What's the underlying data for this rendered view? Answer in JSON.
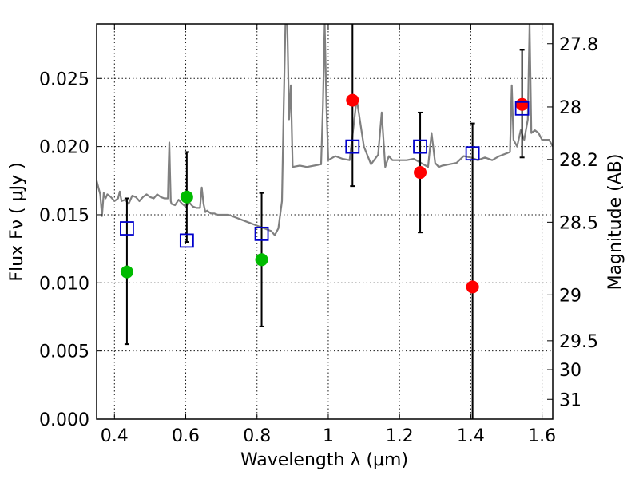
{
  "chart_data": {
    "type": "scatter",
    "xlabel": "Wavelength  λ (μm)",
    "ylabel": "Flux  Fν  ( μJy )",
    "ylabel_right": "Magnitude (AB)",
    "xlim": [
      0.35,
      1.63
    ],
    "ylim": [
      0.0,
      0.029
    ],
    "grid": true,
    "x_ticks": [
      0.4,
      0.6,
      0.8,
      1.0,
      1.2,
      1.4,
      1.6
    ],
    "x_tick_labels": [
      "0.4",
      "0.6",
      "0.8",
      "1",
      "1.2",
      "1.4",
      "1.6"
    ],
    "y_ticks": [
      0.0,
      0.005,
      0.01,
      0.015,
      0.02,
      0.025
    ],
    "y_tick_labels": [
      "0.000",
      "0.005",
      "0.010",
      "0.015",
      "0.020",
      "0.025"
    ],
    "right_ticks": [
      {
        "flux": 0.02755,
        "label": "27.8"
      },
      {
        "flux": 0.02291,
        "label": "28"
      },
      {
        "flux": 0.01905,
        "label": "28.2"
      },
      {
        "flux": 0.01445,
        "label": "28.5"
      },
      {
        "flux": 0.00912,
        "label": "29"
      },
      {
        "flux": 0.00575,
        "label": "29.5"
      },
      {
        "flux": 0.00363,
        "label": "30"
      },
      {
        "flux": 0.00145,
        "label": "31"
      }
    ],
    "series": [
      {
        "color": "#00bb00",
        "marker": "circle",
        "x": [
          0.435,
          0.603,
          0.813
        ],
        "y": [
          0.0108,
          0.0163,
          0.0117
        ]
      },
      {
        "color": "#ff0000",
        "marker": "circle",
        "x": [
          1.068,
          1.258,
          1.405,
          1.544
        ],
        "y": [
          0.0234,
          0.0181,
          0.0097,
          0.0231
        ]
      },
      {
        "color": "#0000cc",
        "marker": "open-square",
        "x": [
          0.435,
          0.603,
          0.813,
          1.068,
          1.258,
          1.405,
          1.544
        ],
        "y": [
          0.014,
          0.0131,
          0.0136,
          0.02,
          0.02,
          0.0195,
          0.0228
        ]
      }
    ],
    "error_bars": [
      {
        "x": 0.435,
        "low": 0.0055,
        "high": 0.0162
      },
      {
        "x": 0.603,
        "low": 0.013,
        "high": 0.0196
      },
      {
        "x": 0.813,
        "low": 0.0068,
        "high": 0.0166
      },
      {
        "x": 1.068,
        "low": 0.0171,
        "high": 0.029
      },
      {
        "x": 1.258,
        "low": 0.0137,
        "high": 0.0225
      },
      {
        "x": 1.405,
        "low": 0.0,
        "high": 0.0217
      },
      {
        "x": 1.544,
        "low": 0.0192,
        "high": 0.0271
      }
    ],
    "model_spectrum": {
      "color": "#808080",
      "x": [
        0.35,
        0.355,
        0.36,
        0.365,
        0.37,
        0.375,
        0.38,
        0.39,
        0.4,
        0.41,
        0.415,
        0.42,
        0.43,
        0.44,
        0.45,
        0.46,
        0.47,
        0.48,
        0.49,
        0.5,
        0.51,
        0.52,
        0.53,
        0.54,
        0.55,
        0.552,
        0.554,
        0.556,
        0.558,
        0.56,
        0.57,
        0.58,
        0.59,
        0.6,
        0.61,
        0.62,
        0.63,
        0.64,
        0.645,
        0.65,
        0.655,
        0.66,
        0.67,
        0.68,
        0.69,
        0.7,
        0.72,
        0.74,
        0.76,
        0.78,
        0.8,
        0.82,
        0.84,
        0.85,
        0.86,
        0.87,
        0.875,
        0.88,
        0.885,
        0.888,
        0.89,
        0.895,
        0.9,
        0.92,
        0.94,
        0.96,
        0.98,
        0.985,
        0.99,
        0.995,
        1.0,
        1.02,
        1.04,
        1.06,
        1.08,
        1.1,
        1.12,
        1.14,
        1.15,
        1.16,
        1.17,
        1.18,
        1.2,
        1.22,
        1.24,
        1.26,
        1.28,
        1.29,
        1.3,
        1.31,
        1.32,
        1.34,
        1.36,
        1.38,
        1.4,
        1.42,
        1.44,
        1.46,
        1.48,
        1.5,
        1.51,
        1.515,
        1.52,
        1.53,
        1.54,
        1.55,
        1.56,
        1.565,
        1.57,
        1.58,
        1.59,
        1.6,
        1.62,
        1.63
      ],
      "y": [
        0.0175,
        0.017,
        0.0165,
        0.0149,
        0.0166,
        0.0162,
        0.0165,
        0.0163,
        0.016,
        0.0162,
        0.0167,
        0.016,
        0.0161,
        0.0158,
        0.0164,
        0.0163,
        0.016,
        0.0163,
        0.0165,
        0.0163,
        0.0162,
        0.0165,
        0.0163,
        0.0162,
        0.0162,
        0.0185,
        0.0203,
        0.018,
        0.016,
        0.0158,
        0.0157,
        0.0161,
        0.0158,
        0.0156,
        0.0159,
        0.0156,
        0.0155,
        0.0155,
        0.017,
        0.0158,
        0.0152,
        0.0153,
        0.0151,
        0.0151,
        0.015,
        0.015,
        0.015,
        0.0148,
        0.0146,
        0.0144,
        0.0142,
        0.014,
        0.0138,
        0.0135,
        0.014,
        0.016,
        0.023,
        0.029,
        0.029,
        0.025,
        0.022,
        0.0245,
        0.0185,
        0.0186,
        0.0185,
        0.0186,
        0.0187,
        0.023,
        0.029,
        0.023,
        0.019,
        0.0193,
        0.0191,
        0.019,
        0.0235,
        0.02,
        0.0187,
        0.0194,
        0.0225,
        0.0185,
        0.0193,
        0.019,
        0.019,
        0.019,
        0.0191,
        0.0188,
        0.0185,
        0.021,
        0.0188,
        0.0185,
        0.0186,
        0.0187,
        0.0188,
        0.0193,
        0.0192,
        0.019,
        0.0192,
        0.019,
        0.0193,
        0.0195,
        0.0196,
        0.0245,
        0.0205,
        0.02,
        0.0212,
        0.0205,
        0.022,
        0.029,
        0.021,
        0.0212,
        0.021,
        0.0205,
        0.0205,
        0.02
      ]
    }
  }
}
